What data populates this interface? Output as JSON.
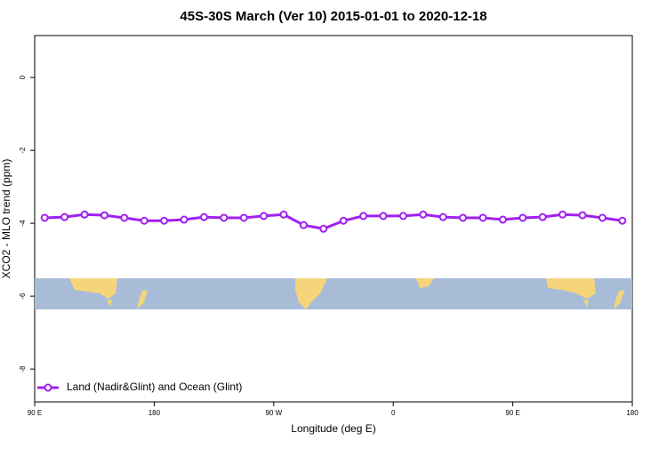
{
  "chart_data": {
    "type": "line",
    "title": "45S-30S March (Ver 10)   2015-01-01 to 2020-12-18",
    "x_label": "Longitude (deg E)",
    "y_label": "XCO2 - MLO trend (ppm)",
    "xlim": [
      90,
      540
    ],
    "xticks": [
      {
        "value": 90,
        "label": "90 E"
      },
      180,
      {
        "value": 270,
        "label": "90 W"
      },
      {
        "value": 360,
        "label": "0"
      },
      {
        "value": 450,
        "label": "90 E"
      },
      {
        "value": 540,
        "label": "180"
      }
    ],
    "ylim": [
      -8.9,
      1.15
    ],
    "yticks": [
      0,
      -2,
      -4,
      -6,
      -8
    ],
    "legend": "bottom-left",
    "x": [
      97.5,
      112.5,
      127.5,
      142.5,
      157.5,
      172.5,
      187.5,
      202.5,
      217.5,
      232.5,
      247.5,
      262.5,
      277.5,
      292.5,
      307.5,
      322.5,
      337.5,
      352.5,
      367.5,
      382.5,
      397.5,
      412.5,
      427.5,
      442.5,
      457.5,
      472.5,
      487.5,
      502.5,
      517.5,
      532.5
    ],
    "series": [
      {
        "name": "Land (Nadir&Glint) and Ocean (Glint)",
        "color": "#a020f0",
        "values": [
          -3.85,
          -3.83,
          -3.76,
          -3.78,
          -3.85,
          -3.93,
          -3.93,
          -3.9,
          -3.83,
          -3.85,
          -3.85,
          -3.8,
          -3.76,
          -4.05,
          -4.15,
          -3.93,
          -3.8,
          -3.8,
          -3.8,
          -3.76,
          -3.83,
          -3.85,
          -3.85,
          -3.9,
          -3.85,
          -3.83,
          -3.76,
          -3.78,
          -3.85,
          -3.93
        ]
      }
    ]
  }
}
